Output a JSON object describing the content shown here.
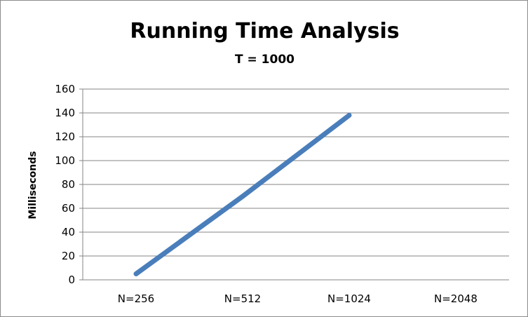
{
  "chart_data": {
    "type": "line",
    "title": "Running Time Analysis",
    "subtitle": "T = 1000",
    "xlabel": "",
    "ylabel": "Milliseconds",
    "categories": [
      "N=256",
      "N=512",
      "N=1024",
      "N=2048"
    ],
    "series": [
      {
        "values": [
          5,
          70,
          138,
          null
        ],
        "color": "#4a7ebb"
      }
    ],
    "ylim": [
      0,
      160
    ],
    "yticks": [
      0,
      20,
      40,
      60,
      80,
      100,
      120,
      140,
      160
    ],
    "ytick_labels": [
      "0",
      "20",
      "40",
      "60",
      "80",
      "100",
      "120",
      "140",
      "160"
    ],
    "grid": true,
    "gridline_color": "#868686",
    "legend": "none"
  }
}
